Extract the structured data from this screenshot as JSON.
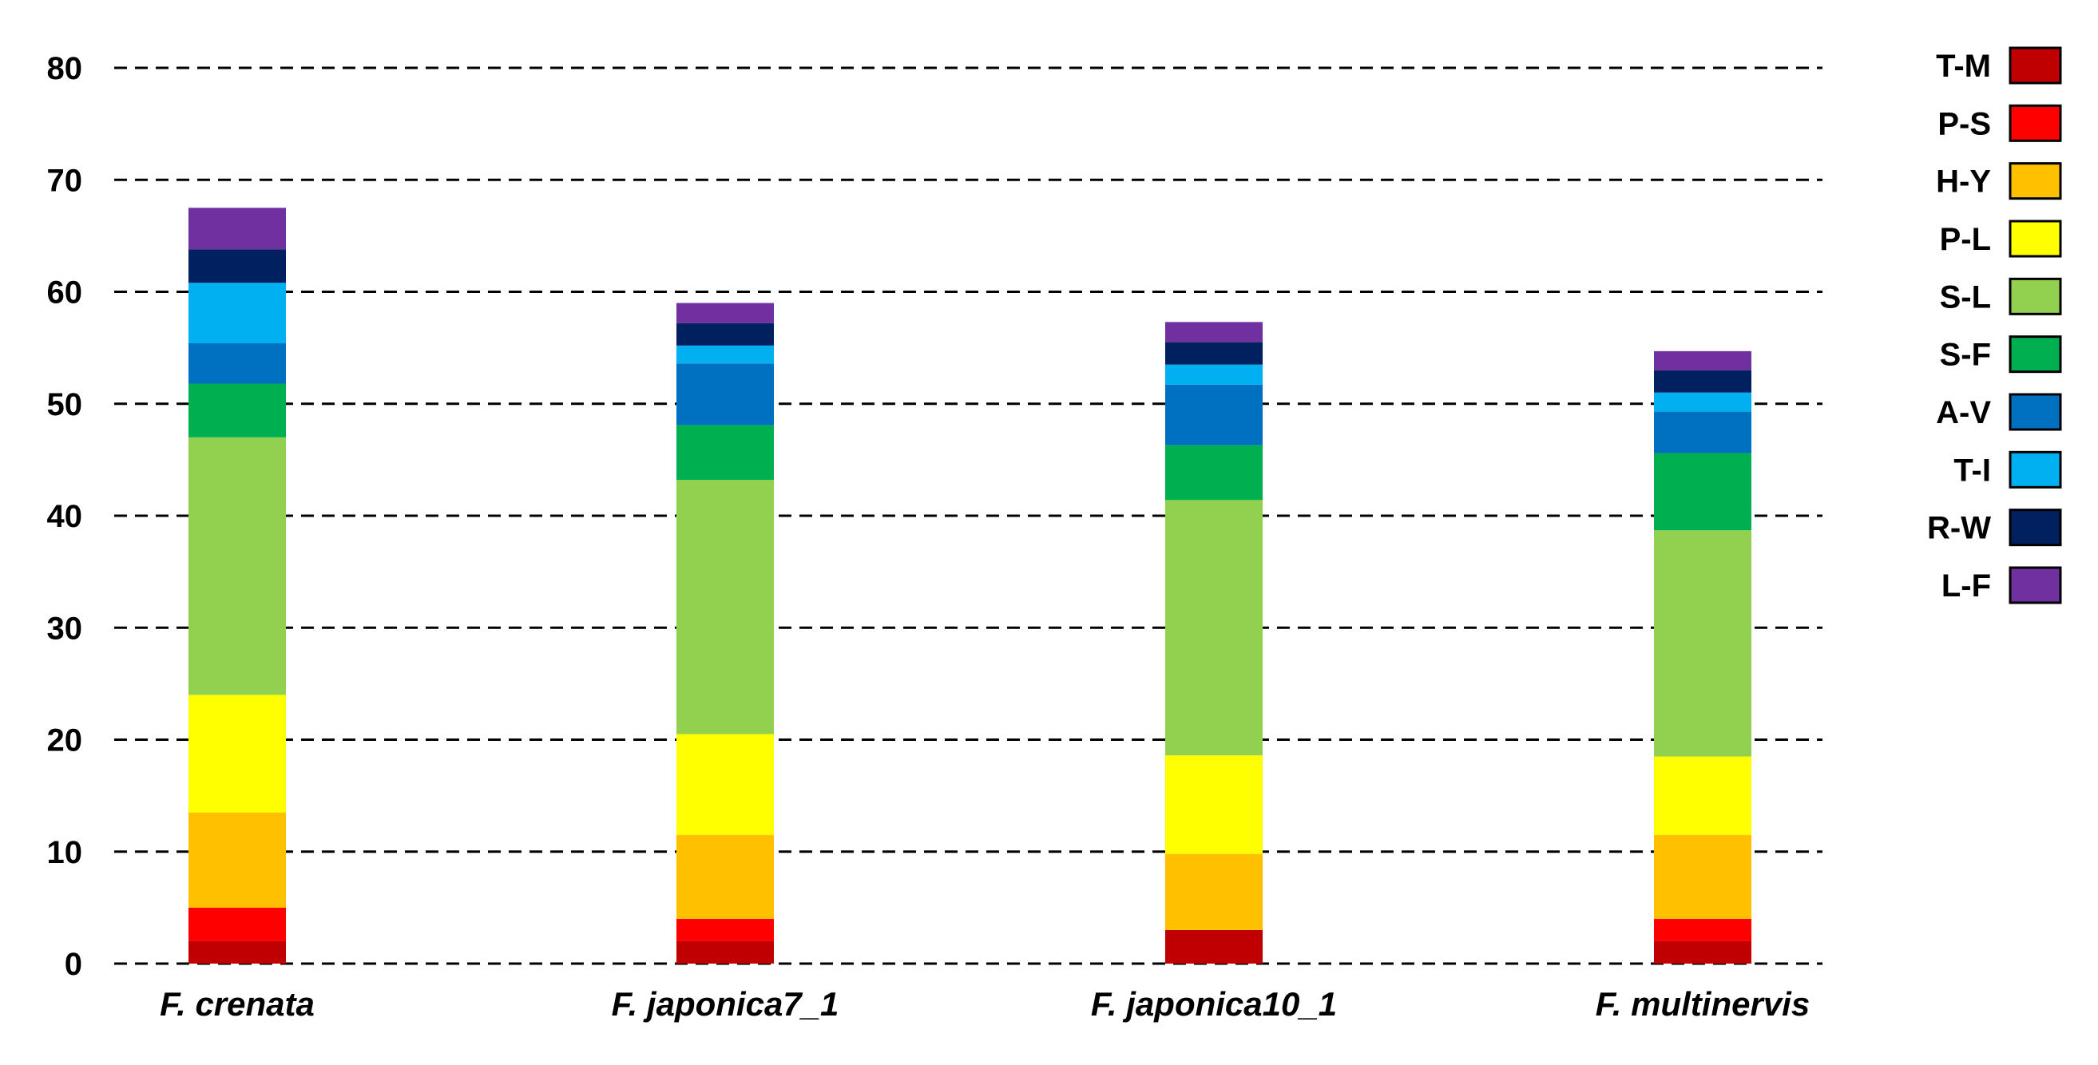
{
  "chart_data": {
    "type": "bar",
    "stacked": true,
    "categories": [
      "F. crenata",
      "F. japonica7_1",
      "F. japonica10_1",
      "F. multinervis"
    ],
    "ylim": [
      0,
      80
    ],
    "yticks": [
      0,
      10,
      20,
      30,
      40,
      50,
      60,
      70,
      80
    ],
    "grid": true,
    "legend_position": "right",
    "series": [
      {
        "name": "T-M",
        "color": "#c00000",
        "values": [
          2.0,
          2.0,
          3.0,
          2.0
        ]
      },
      {
        "name": "P-S",
        "color": "#ff0000",
        "values": [
          3.0,
          2.0,
          0.0,
          2.0
        ]
      },
      {
        "name": "H-Y",
        "color": "#ffc000",
        "values": [
          8.5,
          7.5,
          6.8,
          7.5
        ]
      },
      {
        "name": "P-L",
        "color": "#ffff00",
        "values": [
          10.5,
          9.0,
          8.8,
          7.0
        ]
      },
      {
        "name": "S-L",
        "color": "#92d050",
        "values": [
          23.0,
          22.7,
          22.8,
          20.2
        ]
      },
      {
        "name": "S-F",
        "color": "#00b050",
        "values": [
          4.8,
          4.9,
          4.9,
          6.9
        ]
      },
      {
        "name": "A-V",
        "color": "#0070c0",
        "values": [
          3.6,
          5.5,
          5.4,
          3.7
        ]
      },
      {
        "name": "T-I",
        "color": "#00b0f0",
        "values": [
          5.4,
          1.6,
          1.8,
          1.7
        ]
      },
      {
        "name": "R-W",
        "color": "#002060",
        "values": [
          3.0,
          2.0,
          2.0,
          2.0
        ]
      },
      {
        "name": "L-F",
        "color": "#7030a0",
        "values": [
          3.7,
          1.8,
          1.8,
          1.7
        ]
      }
    ]
  }
}
